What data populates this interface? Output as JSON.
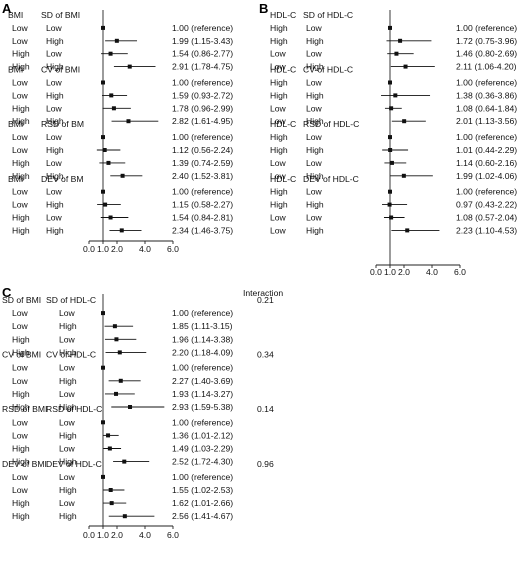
{
  "chart_data": [
    {
      "type": "forest",
      "panel": "A",
      "xticks": [
        "0.0",
        "1.0",
        "2.0",
        "4.0",
        "6.0"
      ],
      "xlim": [
        0,
        6
      ],
      "reference_line": 1.0,
      "groups": [
        {
          "var1": "BMI",
          "var2": "SD of BMI",
          "rows": [
            {
              "c1": "Low",
              "c2": "Low",
              "or": 1.0,
              "lo": 1.0,
              "hi": 1.0,
              "label": "1.00 (reference)"
            },
            {
              "c1": "Low",
              "c2": "High",
              "or": 1.99,
              "lo": 1.15,
              "hi": 3.43,
              "label": "1.99 (1.15-3.43)"
            },
            {
              "c1": "High",
              "c2": "Low",
              "or": 1.54,
              "lo": 0.86,
              "hi": 2.77,
              "label": "1.54 (0.86-2.77)"
            },
            {
              "c1": "High",
              "c2": "High",
              "or": 2.91,
              "lo": 1.78,
              "hi": 4.75,
              "label": "2.91 (1.78-4.75)"
            }
          ]
        },
        {
          "var1": "BMI",
          "var2": "CV of BMI",
          "rows": [
            {
              "c1": "Low",
              "c2": "Low",
              "or": 1.0,
              "lo": 1.0,
              "hi": 1.0,
              "label": "1.00 (reference)"
            },
            {
              "c1": "Low",
              "c2": "High",
              "or": 1.59,
              "lo": 0.93,
              "hi": 2.72,
              "label": "1.59 (0.93-2.72)"
            },
            {
              "c1": "High",
              "c2": "Low",
              "or": 1.78,
              "lo": 0.96,
              "hi": 2.99,
              "label": "1.78 (0.96-2.99)"
            },
            {
              "c1": "High",
              "c2": "High",
              "or": 2.82,
              "lo": 1.61,
              "hi": 4.95,
              "label": "2.82 (1.61-4.95)"
            }
          ]
        },
        {
          "var1": "BMI",
          "var2": "RSD of BM",
          "rows": [
            {
              "c1": "Low",
              "c2": "Low",
              "or": 1.0,
              "lo": 1.0,
              "hi": 1.0,
              "label": "1.00 (reference)"
            },
            {
              "c1": "Low",
              "c2": "High",
              "or": 1.12,
              "lo": 0.56,
              "hi": 2.24,
              "label": "1.12 (0.56-2.24)"
            },
            {
              "c1": "High",
              "c2": "Low",
              "or": 1.39,
              "lo": 0.74,
              "hi": 2.59,
              "label": "1.39 (0.74-2.59)"
            },
            {
              "c1": "High",
              "c2": "High",
              "or": 2.4,
              "lo": 1.52,
              "hi": 3.81,
              "label": "2.40 (1.52-3.81)"
            }
          ]
        },
        {
          "var1": "BMI",
          "var2": "DEV of BM",
          "rows": [
            {
              "c1": "Low",
              "c2": "Low",
              "or": 1.0,
              "lo": 1.0,
              "hi": 1.0,
              "label": "1.00 (reference)"
            },
            {
              "c1": "Low",
              "c2": "High",
              "or": 1.15,
              "lo": 0.58,
              "hi": 2.27,
              "label": "1.15 (0.58-2.27)"
            },
            {
              "c1": "High",
              "c2": "Low",
              "or": 1.54,
              "lo": 0.84,
              "hi": 2.81,
              "label": "1.54 (0.84-2.81)"
            },
            {
              "c1": "High",
              "c2": "High",
              "or": 2.34,
              "lo": 1.46,
              "hi": 3.75,
              "label": "2.34 (1.46-3.75)"
            }
          ]
        }
      ]
    },
    {
      "type": "forest",
      "panel": "B",
      "xticks": [
        "0.0",
        "1.0",
        "2.0",
        "4.0",
        "6.0"
      ],
      "xlim": [
        0,
        6
      ],
      "reference_line": 1.0,
      "groups": [
        {
          "var1": "HDL-C",
          "var2": "SD of HDL-C",
          "rows": [
            {
              "c1": "High",
              "c2": "Low",
              "or": 1.0,
              "lo": 1.0,
              "hi": 1.0,
              "label": "1.00 (reference)"
            },
            {
              "c1": "High",
              "c2": "High",
              "or": 1.72,
              "lo": 0.75,
              "hi": 3.96,
              "label": "1.72 (0.75-3.96)"
            },
            {
              "c1": "Low",
              "c2": "Low",
              "or": 1.46,
              "lo": 0.8,
              "hi": 2.69,
              "label": "1.46 (0.80-2.69)"
            },
            {
              "c1": "Low",
              "c2": "High",
              "or": 2.11,
              "lo": 1.06,
              "hi": 4.2,
              "label": "2.11 (1.06-4.20)"
            }
          ]
        },
        {
          "var1": "HDL-C",
          "var2": "CV of HDL-C",
          "rows": [
            {
              "c1": "High",
              "c2": "Low",
              "or": 1.0,
              "lo": 1.0,
              "hi": 1.0,
              "label": "1.00 (reference)"
            },
            {
              "c1": "High",
              "c2": "High",
              "or": 1.38,
              "lo": 0.36,
              "hi": 3.86,
              "label": "1.38 (0.36-3.86)"
            },
            {
              "c1": "Low",
              "c2": "Low",
              "or": 1.08,
              "lo": 0.64,
              "hi": 1.84,
              "label": "1.08 (0.64-1.84)"
            },
            {
              "c1": "Low",
              "c2": "High",
              "or": 2.01,
              "lo": 1.13,
              "hi": 3.56,
              "label": "2.01 (1.13-3.56)"
            }
          ]
        },
        {
          "var1": "HDL-C",
          "var2": "RSD of HDL-C",
          "rows": [
            {
              "c1": "High",
              "c2": "Low",
              "or": 1.0,
              "lo": 1.0,
              "hi": 1.0,
              "label": "1.00 (reference)"
            },
            {
              "c1": "High",
              "c2": "High",
              "or": 1.01,
              "lo": 0.44,
              "hi": 2.29,
              "label": "1.01 (0.44-2.29)"
            },
            {
              "c1": "Low",
              "c2": "Low",
              "or": 1.14,
              "lo": 0.6,
              "hi": 2.16,
              "label": "1.14 (0.60-2.16)"
            },
            {
              "c1": "Low",
              "c2": "High",
              "or": 1.99,
              "lo": 1.02,
              "hi": 4.06,
              "label": "1.99 (1.02-4.06)"
            }
          ]
        },
        {
          "var1": "HDL-C",
          "var2": "DEV of HDL-C",
          "rows": [
            {
              "c1": "High",
              "c2": "Low",
              "or": 1.0,
              "lo": 1.0,
              "hi": 1.0,
              "label": "1.00 (reference)"
            },
            {
              "c1": "High",
              "c2": "High",
              "or": 0.97,
              "lo": 0.43,
              "hi": 2.22,
              "label": "0.97 (0.43-2.22)"
            },
            {
              "c1": "Low",
              "c2": "Low",
              "or": 1.08,
              "lo": 0.57,
              "hi": 2.04,
              "label": "1.08 (0.57-2.04)"
            },
            {
              "c1": "Low",
              "c2": "High",
              "or": 2.23,
              "lo": 1.1,
              "hi": 4.53,
              "label": "2.23 (1.10-4.53)"
            }
          ]
        }
      ]
    },
    {
      "type": "forest",
      "panel": "C",
      "xticks": [
        "0.0",
        "1.0",
        "2.0",
        "4.0",
        "6.0"
      ],
      "xlim": [
        0,
        6
      ],
      "reference_line": 1.0,
      "interaction_header": "Interaction",
      "groups": [
        {
          "var1": "SD of BMI",
          "var2": "SD of HDL-C",
          "interaction": "0.21",
          "rows": [
            {
              "c1": "Low",
              "c2": "Low",
              "or": 1.0,
              "lo": 1.0,
              "hi": 1.0,
              "label": "1.00 (reference)"
            },
            {
              "c1": "Low",
              "c2": "High",
              "or": 1.85,
              "lo": 1.11,
              "hi": 3.15,
              "label": "1.85 (1.11-3.15)"
            },
            {
              "c1": "High",
              "c2": "Low",
              "or": 1.96,
              "lo": 1.14,
              "hi": 3.38,
              "label": "1.96 (1.14-3.38)"
            },
            {
              "c1": "High",
              "c2": "High",
              "or": 2.2,
              "lo": 1.18,
              "hi": 4.09,
              "label": "2.20 (1.18-4.09)"
            }
          ]
        },
        {
          "var1": "CV of BMI",
          "var2": "CV of HDL-C",
          "interaction": "0.34",
          "rows": [
            {
              "c1": "Low",
              "c2": "Low",
              "or": 1.0,
              "lo": 1.0,
              "hi": 1.0,
              "label": "1.00 (reference)"
            },
            {
              "c1": "Low",
              "c2": "High",
              "or": 2.27,
              "lo": 1.4,
              "hi": 3.69,
              "label": "2.27 (1.40-3.69)"
            },
            {
              "c1": "High",
              "c2": "Low",
              "or": 1.93,
              "lo": 1.14,
              "hi": 3.27,
              "label": "1.93 (1.14-3.27)"
            },
            {
              "c1": "High",
              "c2": "High",
              "or": 2.93,
              "lo": 1.59,
              "hi": 5.38,
              "label": "2.93 (1.59-5.38)"
            }
          ]
        },
        {
          "var1": "RSD of BMI",
          "var2": "RSD of HDL-C",
          "interaction": "0.14",
          "rows": [
            {
              "c1": "Low",
              "c2": "Low",
              "or": 1.0,
              "lo": 1.0,
              "hi": 1.0,
              "label": "1.00 (reference)"
            },
            {
              "c1": "Low",
              "c2": "High",
              "or": 1.36,
              "lo": 1.01,
              "hi": 2.12,
              "label": "1.36 (1.01-2.12)"
            },
            {
              "c1": "High",
              "c2": "Low",
              "or": 1.49,
              "lo": 1.03,
              "hi": 2.29,
              "label": "1.49 (1.03-2.29)"
            },
            {
              "c1": "High",
              "c2": "High",
              "or": 2.52,
              "lo": 1.72,
              "hi": 4.3,
              "label": "2.52 (1.72-4.30)"
            }
          ]
        },
        {
          "var1": "DEV of BMI",
          "var2": "DEV of HDL-C",
          "interaction": "0.96",
          "rows": [
            {
              "c1": "Low",
              "c2": "Low",
              "or": 1.0,
              "lo": 1.0,
              "hi": 1.0,
              "label": "1.00 (reference)"
            },
            {
              "c1": "Low",
              "c2": "High",
              "or": 1.55,
              "lo": 1.02,
              "hi": 2.53,
              "label": "1.55 (1.02-2.53)"
            },
            {
              "c1": "High",
              "c2": "Low",
              "or": 1.62,
              "lo": 1.01,
              "hi": 2.66,
              "label": "1.62 (1.01-2.66)"
            },
            {
              "c1": "High",
              "c2": "High",
              "or": 2.56,
              "lo": 1.41,
              "hi": 4.67,
              "label": "2.56 (1.41-4.67)"
            }
          ]
        }
      ]
    }
  ]
}
